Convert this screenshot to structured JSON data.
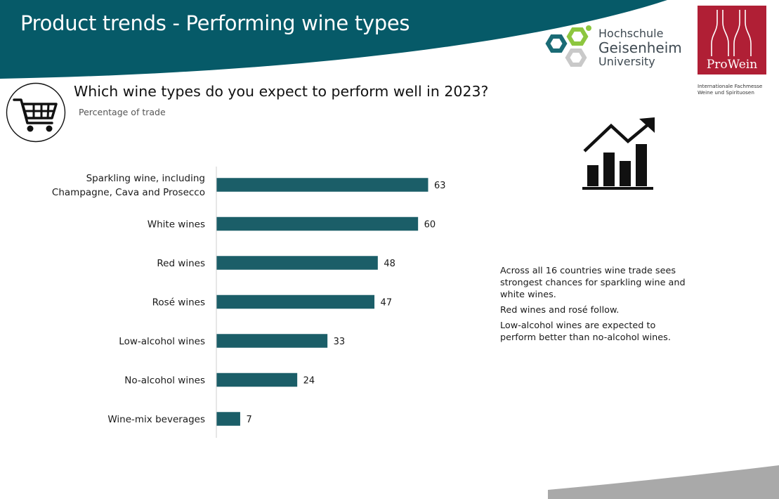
{
  "header": {
    "title": "Product trends - Performing wine types",
    "band_color": "#065a68"
  },
  "logos": {
    "hgu": {
      "line1": "Hochschule",
      "line2": "Geisenheim",
      "line3": "University"
    },
    "provein": {
      "name": "ProWein",
      "sub_line1": "Internationale Fachmesse",
      "sub_line2": "Weine und Spirituosen",
      "brand_color": "#b01f35"
    }
  },
  "icons": {
    "cart": "shopping-cart-icon",
    "trend": "bar-chart-trend-icon"
  },
  "chart_data": {
    "type": "bar",
    "orientation": "horizontal",
    "title": "Which wine types do you expect to perform well in 2023?",
    "subtitle": "Percentage of trade",
    "categories": [
      [
        "Sparkling wine, including",
        "Champagne, Cava and Prosecco"
      ],
      [
        "White wines"
      ],
      [
        "Red wines"
      ],
      [
        "Rosé wines"
      ],
      [
        "Low-alcohol wines"
      ],
      [
        "No-alcohol wines"
      ],
      [
        "Wine-mix beverages"
      ]
    ],
    "values": [
      63,
      60,
      48,
      47,
      33,
      24,
      7
    ],
    "bar_color": "#1b5e68",
    "xlim": [
      0,
      100
    ],
    "grid": false,
    "legend": "none"
  },
  "commentary": [
    "Across all 16 countries wine trade sees strongest chances for sparkling wine and white wines.",
    "Red wines and rosé follow.",
    "Low-alcohol wines are expected to perform better than no-alcohol wines."
  ]
}
